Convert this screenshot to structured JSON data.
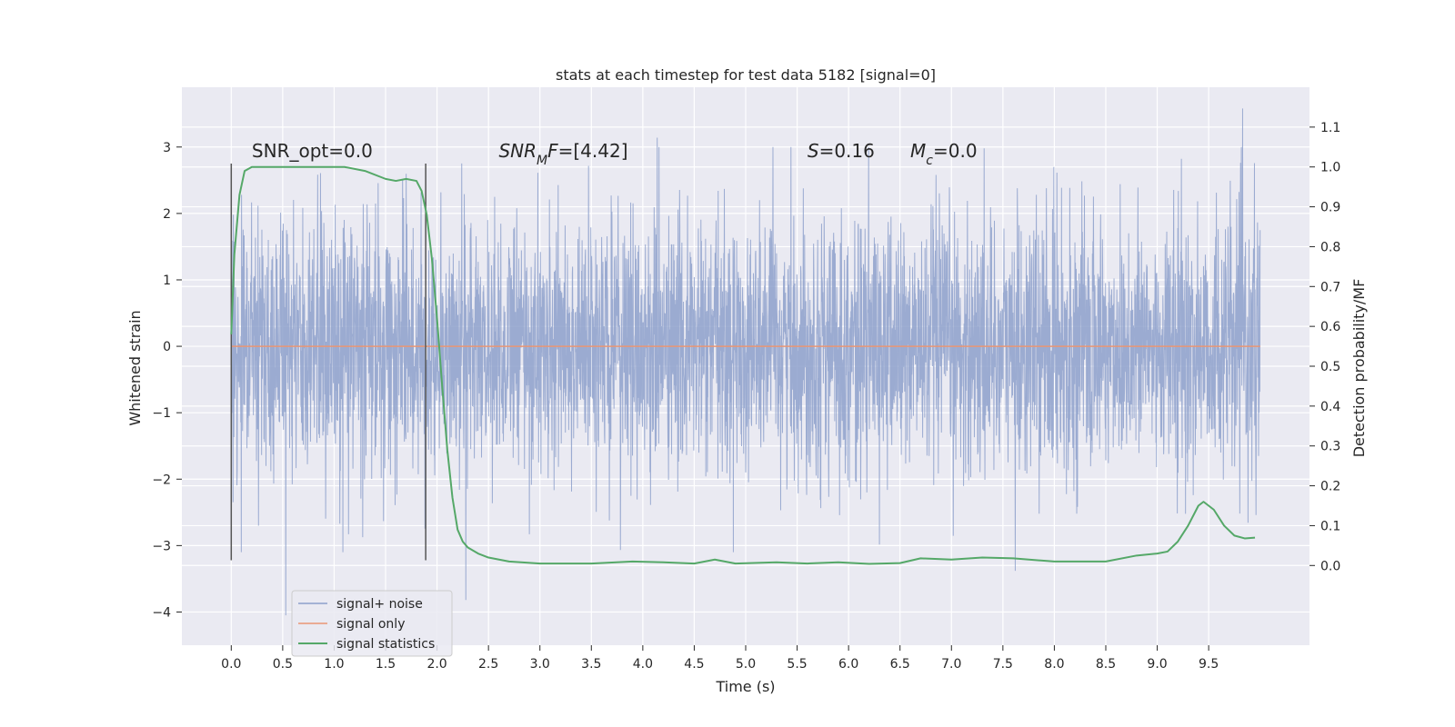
{
  "chart_data": {
    "type": "line",
    "title": "stats at each timestep for test data 5182 [signal=0]",
    "xlabel": "Time (s)",
    "ylabel": "Whitened strain",
    "y2label": "Detection probability/MF",
    "xlim": [
      -0.48,
      10.48
    ],
    "ylim": [
      -4.5,
      3.9
    ],
    "y2lim": [
      -0.2,
      1.2
    ],
    "x_ticks": [
      0.0,
      0.5,
      1.0,
      1.5,
      2.0,
      2.5,
      3.0,
      3.5,
      4.0,
      4.5,
      5.0,
      5.5,
      6.0,
      6.5,
      7.0,
      7.5,
      8.0,
      8.5,
      9.0,
      9.5
    ],
    "x_tick_labels": [
      "0.0",
      "0.5",
      "1.0",
      "1.5",
      "2.0",
      "2.5",
      "3.0",
      "3.5",
      "4.0",
      "4.5",
      "5.0",
      "5.5",
      "6.0",
      "6.5",
      "7.0",
      "7.5",
      "8.0",
      "8.5",
      "9.0",
      "9.5"
    ],
    "y_ticks": [
      -4,
      -3,
      -2,
      -1,
      0,
      1,
      2,
      3
    ],
    "y_tick_labels": [
      "−4",
      "−3",
      "−2",
      "−1",
      "0",
      "1",
      "2",
      "3"
    ],
    "y2_ticks": [
      0.0,
      0.1,
      0.2,
      0.3,
      0.4,
      0.5,
      0.6,
      0.7,
      0.8,
      0.9,
      1.0,
      1.1
    ],
    "y2_tick_labels": [
      "0.0",
      "0.1",
      "0.2",
      "0.3",
      "0.4",
      "0.5",
      "0.6",
      "0.7",
      "0.8",
      "0.9",
      "1.0",
      "1.1"
    ],
    "grid": true,
    "legend_position": "lower-left",
    "series": [
      {
        "name": "signal+ noise",
        "color": "#8da0cb",
        "description_range": [
          0.0,
          10.0
        ],
        "peaks": [
          {
            "x": 0.53,
            "y": -4.05
          },
          {
            "x": 2.28,
            "y": -3.82
          },
          {
            "x": 4.14,
            "y": 3.14
          },
          {
            "x": 7.62,
            "y": -3.38
          },
          {
            "x": 9.83,
            "y": 3.58
          }
        ]
      },
      {
        "name": "signal only",
        "color": "#e99675",
        "x": [
          0.0,
          10.0
        ],
        "y": [
          0.0,
          0.0
        ]
      },
      {
        "name": "signal statistics",
        "color": "#55a868",
        "axis": "right",
        "x": [
          0.0,
          0.03,
          0.08,
          0.13,
          0.2,
          0.3,
          0.5,
          0.8,
          1.1,
          1.3,
          1.5,
          1.6,
          1.7,
          1.8,
          1.85,
          1.9,
          1.95,
          2.0,
          2.05,
          2.1,
          2.15,
          2.2,
          2.25,
          2.3,
          2.4,
          2.5,
          2.7,
          3.0,
          3.5,
          3.9,
          4.2,
          4.5,
          4.7,
          4.9,
          5.3,
          5.6,
          5.9,
          6.2,
          6.5,
          6.7,
          7.0,
          7.3,
          7.6,
          8.0,
          8.5,
          8.8,
          9.0,
          9.1,
          9.2,
          9.3,
          9.4,
          9.45,
          9.55,
          9.65,
          9.75,
          9.85,
          9.95
        ],
        "y": [
          0.58,
          0.78,
          0.93,
          0.99,
          1.0,
          1.0,
          1.0,
          1.0,
          1.0,
          0.99,
          0.97,
          0.965,
          0.97,
          0.965,
          0.94,
          0.88,
          0.77,
          0.62,
          0.45,
          0.29,
          0.17,
          0.09,
          0.06,
          0.045,
          0.03,
          0.02,
          0.01,
          0.005,
          0.005,
          0.01,
          0.008,
          0.005,
          0.015,
          0.005,
          0.008,
          0.005,
          0.008,
          0.004,
          0.006,
          0.018,
          0.015,
          0.02,
          0.018,
          0.01,
          0.01,
          0.025,
          0.03,
          0.035,
          0.06,
          0.1,
          0.15,
          0.16,
          0.14,
          0.1,
          0.075,
          0.068,
          0.07
        ]
      }
    ],
    "vlines": [
      {
        "x": 0.0,
        "y0": -3.22,
        "y1": 2.75
      },
      {
        "x": 1.89,
        "y0": -3.22,
        "y1": 2.75
      }
    ],
    "annotations": [
      {
        "id": "snr-opt",
        "x": 0.2,
        "y": 2.85,
        "parts": [
          {
            "t": "SNR_opt=0.0"
          }
        ]
      },
      {
        "id": "snr-mf",
        "x": 2.6,
        "y": 2.85,
        "parts": [
          {
            "t": "SNR",
            "italic": true
          },
          {
            "t": "M",
            "italic": true,
            "sub": true
          },
          {
            "t": "F",
            "italic": true
          },
          {
            "t": "=[4.42]"
          }
        ]
      },
      {
        "id": "s-value",
        "x": 5.6,
        "y": 2.85,
        "parts": [
          {
            "t": "S",
            "italic": true
          },
          {
            "t": "=0.16"
          }
        ]
      },
      {
        "id": "mc-value",
        "x": 6.6,
        "y": 2.85,
        "parts": [
          {
            "t": "M",
            "italic": true
          },
          {
            "t": "c",
            "italic": true,
            "sub": true
          },
          {
            "t": "=0.0"
          }
        ]
      }
    ]
  }
}
